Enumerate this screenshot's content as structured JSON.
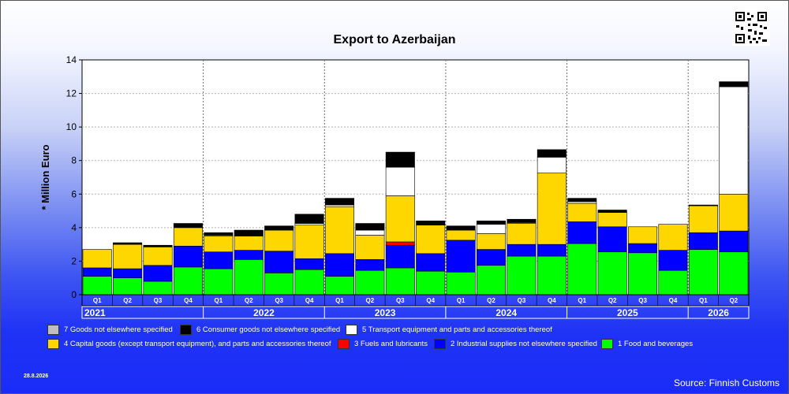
{
  "chart_data": {
    "type": "bar",
    "stacked": true,
    "title": "Export to Azerbaijan",
    "ylabel": "* Million Euro",
    "xlabel": "",
    "ylim": [
      0,
      14
    ],
    "yticks": [
      0,
      2,
      4,
      6,
      8,
      10,
      12,
      14
    ],
    "grid": true,
    "legend_position": "bottom",
    "years": [
      {
        "label": "2021",
        "quarters": 4
      },
      {
        "label": "2022",
        "quarters": 4
      },
      {
        "label": "2023",
        "quarters": 4
      },
      {
        "label": "2024",
        "quarters": 4
      },
      {
        "label": "2025",
        "quarters": 4
      },
      {
        "label": "2026",
        "quarters": 2
      }
    ],
    "categories": [
      "Q1",
      "Q2",
      "Q3",
      "Q4",
      "Q1",
      "Q2",
      "Q3",
      "Q4",
      "Q1",
      "Q2",
      "Q3",
      "Q4",
      "Q1",
      "Q2",
      "Q3",
      "Q4",
      "Q1",
      "Q2",
      "Q3",
      "Q4",
      "Q1",
      "Q2"
    ],
    "series": [
      {
        "name": "1 Food and beverages",
        "color": "#00ff00",
        "values": [
          1.1,
          1.0,
          0.8,
          1.65,
          1.55,
          2.1,
          1.3,
          1.5,
          1.1,
          1.45,
          1.6,
          1.4,
          1.35,
          1.75,
          2.3,
          2.3,
          3.05,
          2.55,
          2.5,
          1.45,
          2.7,
          2.55
        ]
      },
      {
        "name": "2 Industrial supplies not elsewhere specified",
        "color": "#0000ff",
        "values": [
          0.5,
          0.55,
          0.95,
          1.25,
          1.0,
          0.55,
          1.3,
          0.65,
          1.35,
          0.65,
          1.35,
          1.05,
          1.9,
          0.95,
          0.7,
          0.7,
          1.3,
          1.5,
          0.55,
          1.2,
          1.0,
          1.25
        ]
      },
      {
        "name": "3 Fuels and lubricants",
        "color": "#ff0000",
        "values": [
          0,
          0,
          0,
          0,
          0,
          0,
          0,
          0,
          0,
          0,
          0.2,
          0,
          0,
          0,
          0,
          0,
          0,
          0,
          0,
          0,
          0,
          0
        ]
      },
      {
        "name": "4 Capital goods (except transport equipment), and parts and accessories thereof",
        "color": "#ffd700",
        "values": [
          1.1,
          1.45,
          1.1,
          1.1,
          0.95,
          0.85,
          1.25,
          2.0,
          2.8,
          1.45,
          2.75,
          1.7,
          0.6,
          0.95,
          1.25,
          4.25,
          1.1,
          0.85,
          1.0,
          1.55,
          1.6,
          2.2
        ]
      },
      {
        "name": "5  Transport equipment and parts and accessories thereof",
        "color": "#ffffff",
        "values": [
          0,
          0,
          0,
          0,
          0.05,
          0,
          0,
          0.1,
          0.1,
          0.3,
          1.7,
          0,
          0,
          0.55,
          0.05,
          0.95,
          0.1,
          0,
          0,
          0,
          0,
          6.4
        ]
      },
      {
        "name": "6 Consumer goods not elsewhere specified",
        "color": "#000000",
        "values": [
          0,
          0.1,
          0.1,
          0.25,
          0.15,
          0.35,
          0.25,
          0.55,
          0.4,
          0.4,
          0.9,
          0.25,
          0.25,
          0.2,
          0.2,
          0.45,
          0.2,
          0.15,
          0,
          0,
          0.05,
          0.3
        ]
      },
      {
        "name": "7 Goods not elsewhere specified",
        "color": "#bfbfbf",
        "values": [
          0,
          0,
          0,
          0,
          0,
          0,
          0,
          0,
          0,
          0,
          0,
          0,
          0,
          0,
          0,
          0,
          0,
          0,
          0,
          0,
          0,
          0
        ]
      }
    ],
    "legend_order": [
      6,
      5,
      4,
      3,
      2,
      1,
      0
    ]
  },
  "footer": {
    "date": "28.8.2026",
    "source": "Source: Finnish Customs"
  }
}
